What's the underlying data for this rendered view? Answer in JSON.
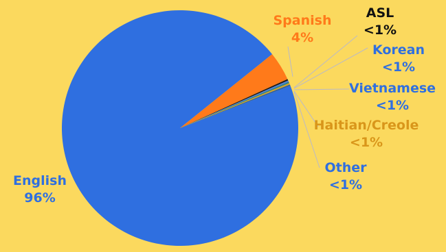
{
  "chart_data": {
    "type": "pie",
    "slices": [
      {
        "name": "English",
        "value": 96,
        "label_line1": "English",
        "label_line2": "96%",
        "color": "#2f6fe0",
        "label_color": "#2f6fe0"
      },
      {
        "name": "Spanish",
        "value": 4,
        "label_line1": "Spanish",
        "label_line2": "4%",
        "color": "#ff7a1a",
        "label_color": "#ff7a1a"
      },
      {
        "name": "ASL",
        "value": 0.2,
        "label_line1": "ASL",
        "label_line2": "<1%",
        "color": "#1a1a1a",
        "label_color": "#111111"
      },
      {
        "name": "Korean",
        "value": 0.2,
        "label_line1": "Korean",
        "label_line2": "<1%",
        "color": "#4a7fe0",
        "label_color": "#2f6fe0"
      },
      {
        "name": "Vietnamese",
        "value": 0.2,
        "label_line1": "Vietnamese",
        "label_line2": "<1%",
        "color": "#2e7f8a",
        "label_color": "#2f6fe0"
      },
      {
        "name": "Haitian/Creole",
        "value": 0.2,
        "label_line1": "Haitian/Creole",
        "label_line2": "<1%",
        "color": "#d9a520",
        "label_color": "#d9961a"
      },
      {
        "name": "Other",
        "value": 0.2,
        "label_line1": "Other",
        "label_line2": "<1%",
        "color": "#2b5fa8",
        "label_color": "#2f6fe0"
      }
    ]
  }
}
